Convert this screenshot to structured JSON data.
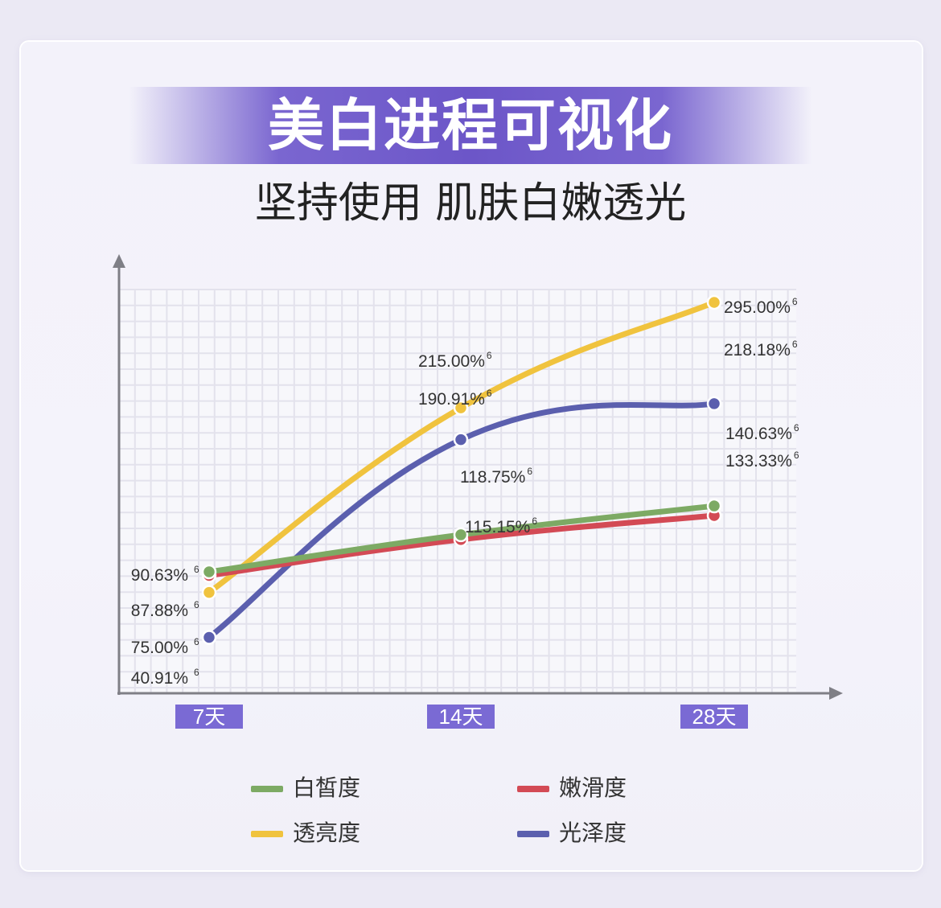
{
  "title": "美白进程可视化",
  "subtitle": "坚持使用 肌肤白嫩透光",
  "chart_data": {
    "type": "line",
    "categories": [
      "7天",
      "14天",
      "28天"
    ],
    "series": [
      {
        "name": "白皙度",
        "color": "#7daa64",
        "values": [
          90.63,
          118.75,
          140.63
        ],
        "labels": [
          "90.63%",
          "118.75%",
          "140.63%"
        ]
      },
      {
        "name": "嫩滑度",
        "color": "#d34a55",
        "values": [
          87.88,
          115.15,
          133.33
        ],
        "labels": [
          "87.88%",
          "115.15%",
          "133.33%"
        ]
      },
      {
        "name": "透亮度",
        "color": "#f0c33e",
        "values": [
          75.0,
          215.0,
          295.0
        ],
        "labels": [
          "75.00%",
          "215.00%",
          "295.00%"
        ]
      },
      {
        "name": "光泽度",
        "color": "#5b5fae",
        "values": [
          40.91,
          190.91,
          218.18
        ],
        "labels": [
          "40.91%",
          "190.91%",
          "218.18%"
        ]
      }
    ],
    "footnote_mark": "6",
    "grid": true,
    "legend_position": "bottom"
  },
  "legend": [
    {
      "label": "白皙度",
      "color": "#7daa64"
    },
    {
      "label": "嫩滑度",
      "color": "#d34a55"
    },
    {
      "label": "透亮度",
      "color": "#f0c33e"
    },
    {
      "label": "光泽度",
      "color": "#5b5fae"
    }
  ]
}
